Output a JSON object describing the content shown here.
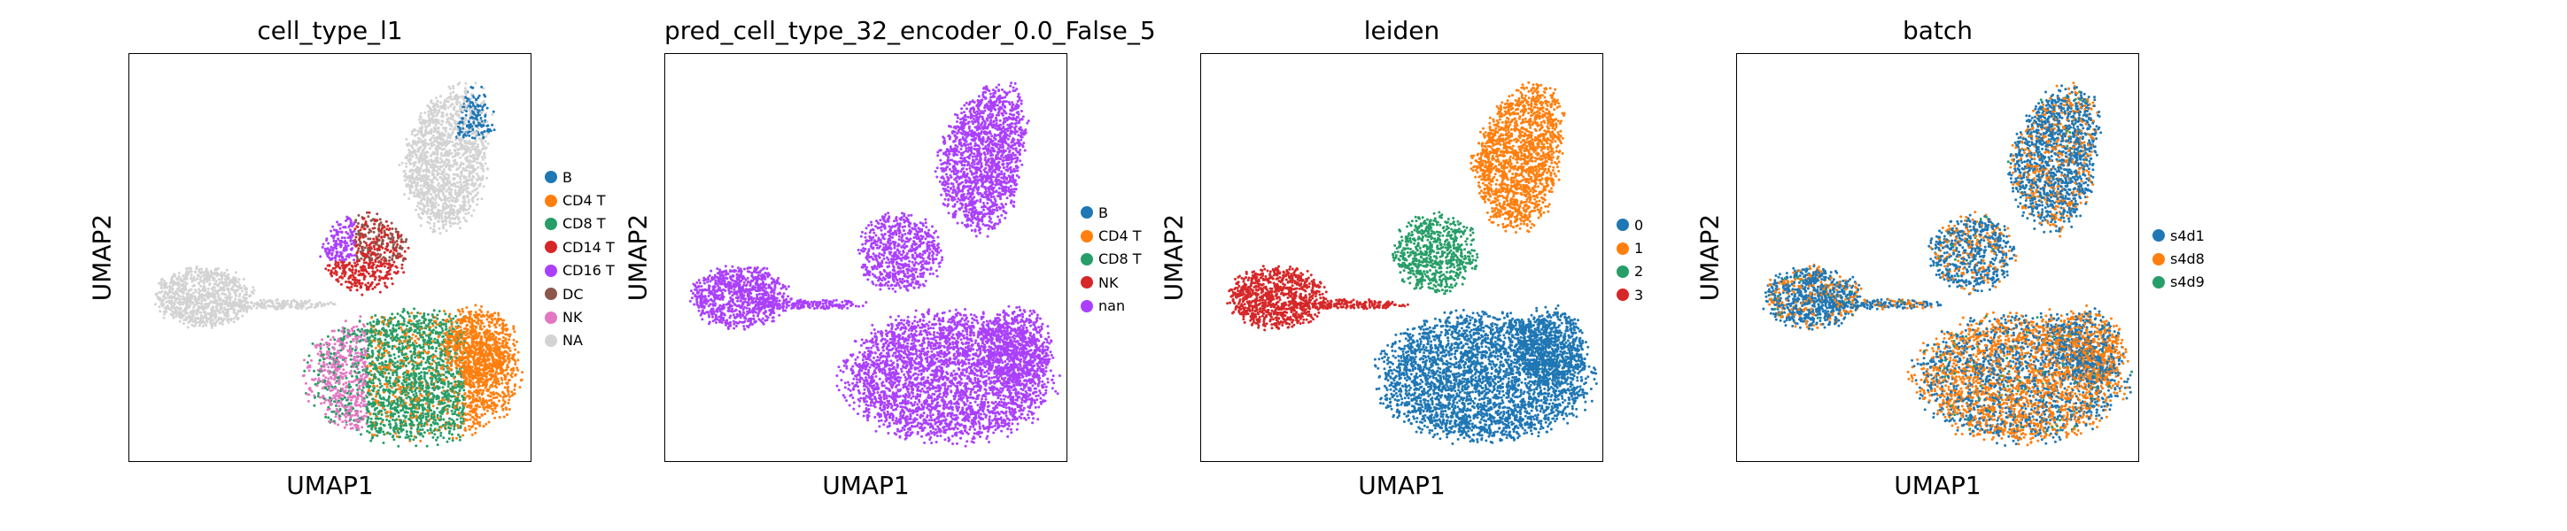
{
  "chart_data": [
    {
      "type": "scatter",
      "title": "cell_type_l1",
      "xlabel": "UMAP1",
      "ylabel": "UMAP2",
      "legend_position": "right",
      "legend": [
        {
          "label": "B",
          "color": "#1f77b4"
        },
        {
          "label": "CD4 T",
          "color": "#ff7f0e"
        },
        {
          "label": "CD8 T",
          "color": "#279e68"
        },
        {
          "label": "CD14 T",
          "color": "#d62728"
        },
        {
          "label": "CD16 T",
          "color": "#aa40fc"
        },
        {
          "label": "DC",
          "color": "#8c564b"
        },
        {
          "label": "NK",
          "color": "#e377c2"
        },
        {
          "label": "NA",
          "color": "#d3d3d3"
        }
      ]
    },
    {
      "type": "scatter",
      "title": "pred_cell_type_32_encoder_0.0_False_5",
      "xlabel": "UMAP1",
      "ylabel": "UMAP2",
      "legend_position": "right",
      "legend": [
        {
          "label": "B",
          "color": "#1f77b4"
        },
        {
          "label": "CD4 T",
          "color": "#ff7f0e"
        },
        {
          "label": "CD8 T",
          "color": "#279e68"
        },
        {
          "label": "NK",
          "color": "#d62728"
        },
        {
          "label": "nan",
          "color": "#aa40fc"
        }
      ]
    },
    {
      "type": "scatter",
      "title": "leiden",
      "xlabel": "UMAP1",
      "ylabel": "UMAP2",
      "legend_position": "right",
      "legend": [
        {
          "label": "0",
          "color": "#1f77b4"
        },
        {
          "label": "1",
          "color": "#ff7f0e"
        },
        {
          "label": "2",
          "color": "#279e68"
        },
        {
          "label": "3",
          "color": "#d62728"
        }
      ]
    },
    {
      "type": "scatter",
      "title": "batch",
      "xlabel": "UMAP1",
      "ylabel": "UMAP2",
      "legend_position": "right",
      "legend": [
        {
          "label": "s4d1",
          "color": "#1f77b4"
        },
        {
          "label": "s4d8",
          "color": "#ff7f0e"
        },
        {
          "label": "s4d9",
          "color": "#279e68"
        }
      ]
    }
  ]
}
